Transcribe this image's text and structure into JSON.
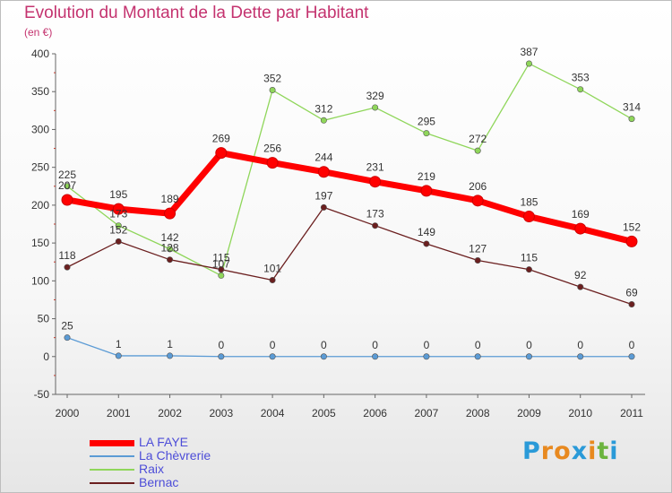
{
  "title": "Evolution du Montant de la Dette par Habitant",
  "subtitle": "(en €)",
  "logo": {
    "text": "Proxiti",
    "colors": [
      "#2a9ad8",
      "#e8891f",
      "#e8891f",
      "#2a9ad8",
      "#e8891f",
      "#6cb43f",
      "#2a9ad8"
    ]
  },
  "chart_data": {
    "type": "line",
    "x": [
      "2000",
      "2001",
      "2002",
      "2003",
      "2004",
      "2005",
      "2006",
      "2007",
      "2008",
      "2009",
      "2010",
      "2011"
    ],
    "ylim": [
      -50,
      400
    ],
    "yticks": [
      "-50",
      "0",
      "50",
      "100",
      "150",
      "200",
      "250",
      "300",
      "350",
      "400"
    ],
    "grid": false,
    "legend_position": "bottom-left",
    "series": [
      {
        "name": "Raix",
        "color": "#8fd65a",
        "values": [
          225,
          173,
          142,
          107,
          352,
          312,
          329,
          295,
          272,
          387,
          353,
          314
        ],
        "labels": [
          "225",
          "173",
          "142",
          "107",
          "352",
          "312",
          "329",
          "295",
          "272",
          "387",
          "353",
          "314"
        ]
      },
      {
        "name": "Bernac",
        "color": "#6b1f1f",
        "values": [
          118,
          152,
          128,
          115,
          101,
          197,
          173,
          149,
          127,
          115,
          92,
          69
        ],
        "labels": [
          "118",
          "152",
          "128",
          "115",
          "101",
          "197",
          "173",
          "149",
          "127",
          "115",
          "92",
          "69"
        ]
      },
      {
        "name": "La Chèvrerie",
        "color": "#5b9bd5",
        "values": [
          25,
          1,
          1,
          0,
          0,
          0,
          0,
          0,
          0,
          0,
          0,
          0
        ],
        "labels": [
          "25",
          "1",
          "1",
          "0",
          "0",
          "0",
          "0",
          "0",
          "0",
          "0",
          "0",
          "0"
        ]
      },
      {
        "name": "LA FAYE",
        "color": "#ff0000",
        "values": [
          207,
          195,
          189,
          269,
          256,
          244,
          231,
          219,
          206,
          185,
          169,
          152
        ],
        "labels": [
          "207",
          "195",
          "189",
          "269",
          "256",
          "244",
          "231",
          "219",
          "206",
          "185",
          "169",
          "152"
        ]
      }
    ],
    "legend": [
      "LA FAYE",
      "La Chèvrerie",
      "Raix",
      "Bernac"
    ]
  }
}
